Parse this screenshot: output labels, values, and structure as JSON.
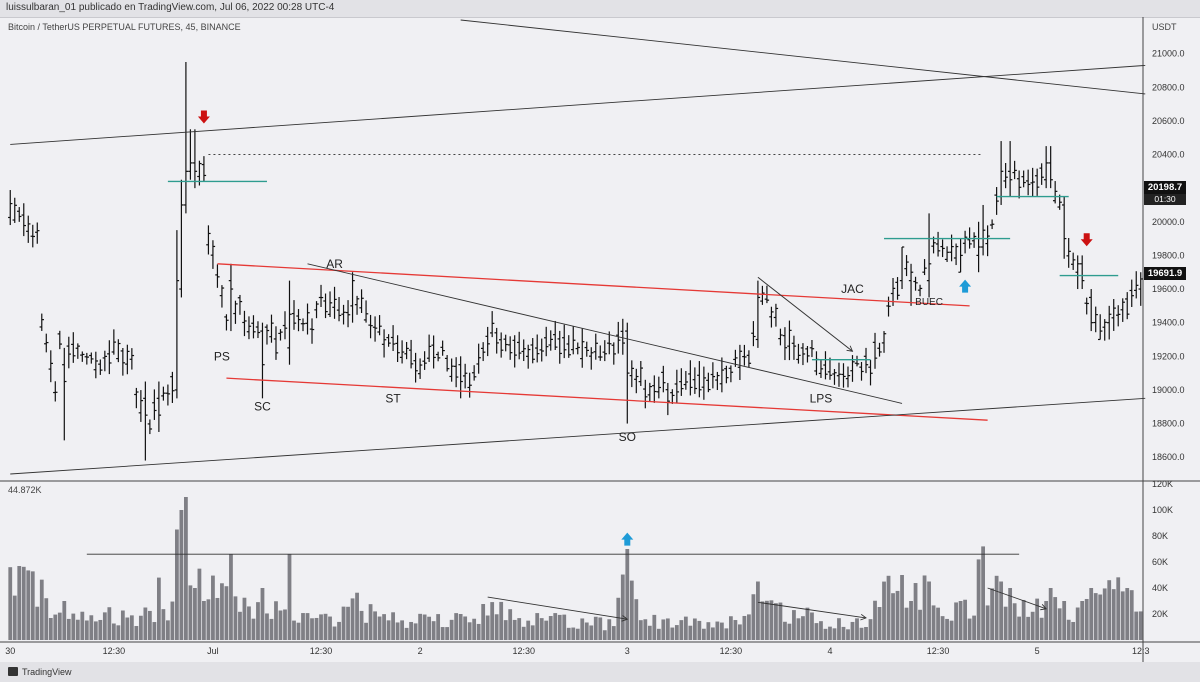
{
  "header": {
    "publisher": "luissulbaran_01 publicado en TradingView.com, Jul 06, 2022 00:28 UTC-4",
    "symbol": "Bitcoin / TetherUS PERPETUAL FUTURES, 45, BINANCE",
    "currency": "USDT",
    "volume_label": "44.872K"
  },
  "footer": {
    "logo_text": "TradingView"
  },
  "badges": {
    "current_price": "20198.7",
    "countdown": "01:30",
    "last_price": "19691.9"
  },
  "colors": {
    "bar": "#111111",
    "volume": "#7f7f85",
    "resistance": "#e53935",
    "level": "#2e9c8f",
    "arrow_down": "#cc1111",
    "arrow_up": "#1e9bd7"
  },
  "chart_data": {
    "type": "bar",
    "ylim": [
      18500,
      21200
    ],
    "volume_ylim": [
      0,
      120000
    ],
    "price_ticks": [
      21000,
      20800,
      20600,
      20400,
      20200,
      20000,
      19800,
      19600,
      19400,
      19200,
      19000,
      18800,
      18600
    ],
    "price_tick_labels": [
      "21000.0",
      "20800.0",
      "20600.0",
      "20400.0",
      "20200.0",
      "20000.0",
      "19800.0",
      "19600.0",
      "19400.0",
      "19200.0",
      "19000.0",
      "18800.0",
      "18600.0"
    ],
    "volume_ticks": [
      120000,
      100000,
      80000,
      60000,
      40000,
      20000
    ],
    "volume_tick_labels": [
      "120K",
      "100K",
      "80K",
      "60K",
      "40K",
      "20K"
    ],
    "x_ticks": [
      {
        "i": 0,
        "label": "30"
      },
      {
        "i": 23,
        "label": "12:30"
      },
      {
        "i": 45,
        "label": "Jul"
      },
      {
        "i": 69,
        "label": "12:30"
      },
      {
        "i": 91,
        "label": "2"
      },
      {
        "i": 114,
        "label": "12:30"
      },
      {
        "i": 137,
        "label": "3"
      },
      {
        "i": 160,
        "label": "12:30"
      },
      {
        "i": 182,
        "label": "4"
      },
      {
        "i": 206,
        "label": "12:30"
      },
      {
        "i": 228,
        "label": "5"
      },
      {
        "i": 251,
        "label": "12:3"
      }
    ],
    "anchors": [
      [
        0,
        20100,
        20080,
        50000
      ],
      [
        6,
        19900,
        19500,
        40000
      ],
      [
        10,
        19000,
        19300,
        20000
      ],
      [
        18,
        19200,
        19100,
        18000
      ],
      [
        22,
        19200,
        19300,
        20000
      ],
      [
        27,
        19150,
        19000,
        15000
      ],
      [
        31,
        18800,
        18900,
        22000
      ],
      [
        36,
        19050,
        19150,
        25000
      ],
      [
        38,
        19700,
        20200,
        100000
      ],
      [
        40,
        20300,
        20350,
        42000
      ],
      [
        43,
        20300,
        20000,
        42000
      ],
      [
        47,
        19600,
        19400,
        38000
      ],
      [
        51,
        19500,
        19400,
        32000
      ],
      [
        58,
        19350,
        19200,
        24000
      ],
      [
        62,
        19400,
        19450,
        20000
      ],
      [
        67,
        19400,
        19500,
        18000
      ],
      [
        72,
        19500,
        19450,
        18000
      ],
      [
        76,
        19500,
        19600,
        30000
      ],
      [
        80,
        19400,
        19350,
        22000
      ],
      [
        85,
        19300,
        19250,
        18000
      ],
      [
        91,
        19150,
        19200,
        15000
      ],
      [
        96,
        19250,
        19150,
        15000
      ],
      [
        101,
        19100,
        19000,
        16000
      ],
      [
        107,
        19350,
        19300,
        25000
      ],
      [
        113,
        19250,
        19200,
        18000
      ],
      [
        118,
        19250,
        19300,
        16000
      ],
      [
        124,
        19250,
        19300,
        15000
      ],
      [
        129,
        19200,
        19250,
        14000
      ],
      [
        134,
        19250,
        19300,
        12000
      ],
      [
        137,
        19300,
        19100,
        70000
      ],
      [
        140,
        19100,
        19000,
        15000
      ],
      [
        145,
        19050,
        18980,
        14000
      ],
      [
        150,
        19000,
        19050,
        15000
      ],
      [
        156,
        19050,
        19050,
        12000
      ],
      [
        160,
        19100,
        19150,
        15000
      ],
      [
        164,
        19200,
        19300,
        18000
      ],
      [
        166,
        19350,
        19550,
        45000
      ],
      [
        170,
        19450,
        19300,
        25000
      ],
      [
        174,
        19300,
        19200,
        20000
      ],
      [
        178,
        19200,
        19150,
        18000
      ],
      [
        181,
        19100,
        19050,
        15000
      ],
      [
        186,
        19100,
        19150,
        14000
      ],
      [
        191,
        19150,
        19200,
        18000
      ],
      [
        194,
        19300,
        19500,
        35000
      ],
      [
        198,
        19650,
        19800,
        45000
      ],
      [
        201,
        19650,
        19550,
        35000
      ],
      [
        203,
        19700,
        19850,
        40000
      ],
      [
        206,
        19850,
        19800,
        28000
      ],
      [
        210,
        19800,
        19850,
        22000
      ],
      [
        214,
        19900,
        19800,
        28000
      ],
      [
        218,
        19950,
        20100,
        38000
      ],
      [
        221,
        20250,
        20350,
        36000
      ],
      [
        224,
        20250,
        20300,
        25000
      ],
      [
        228,
        20250,
        20300,
        25000
      ],
      [
        231,
        20350,
        20200,
        38000
      ],
      [
        234,
        20100,
        19800,
        28000
      ],
      [
        237,
        19800,
        19650,
        22000
      ],
      [
        240,
        19500,
        19400,
        38000
      ],
      [
        244,
        19400,
        19450,
        40000
      ],
      [
        248,
        19500,
        19600,
        35000
      ],
      [
        251,
        19620,
        19660,
        22000
      ]
    ],
    "specials": {
      "38": [
        19600,
        20100,
        19550,
        20250,
        100000
      ],
      "39": [
        20100,
        20300,
        20050,
        20950,
        110000
      ],
      "40": [
        20300,
        20350,
        20250,
        20550,
        42000
      ],
      "41": [
        20350,
        20300,
        20200,
        20550,
        40000
      ],
      "37": [
        19000,
        19650,
        18950,
        19950,
        85000
      ],
      "33": [
        18950,
        18850,
        18750,
        19050,
        48000
      ],
      "30": [
        18950,
        18850,
        18580,
        19050,
        25000
      ],
      "12": [
        19150,
        19050,
        18700,
        19250,
        30000
      ],
      "49": [
        19650,
        19600,
        19350,
        19750,
        66000
      ],
      "56": [
        19350,
        19150,
        18950,
        19400,
        40000
      ],
      "62": [
        19250,
        19450,
        19150,
        19650,
        66000
      ],
      "76": [
        19500,
        19650,
        19400,
        19700,
        32000
      ],
      "100": [
        19150,
        19050,
        18950,
        19200,
        20000
      ],
      "137": [
        19350,
        19100,
        18800,
        19400,
        70000
      ],
      "166": [
        19300,
        19550,
        19250,
        19650,
        45000
      ],
      "190": [
        19200,
        19150,
        19100,
        19250,
        10000
      ],
      "198": [
        19650,
        19850,
        19600,
        19850,
        50000
      ],
      "200": [
        19650,
        19700,
        19500,
        19750,
        30000
      ],
      "204": [
        19650,
        19750,
        19550,
        20050,
        45000
      ],
      "211": [
        19700,
        19800,
        19700,
        19900,
        30000
      ],
      "215": [
        19800,
        19850,
        19700,
        20000,
        62000
      ],
      "216": [
        19850,
        19950,
        19800,
        20100,
        72000
      ],
      "220": [
        20150,
        20300,
        20100,
        20480,
        45000
      ],
      "222": [
        20300,
        20250,
        20150,
        20480,
        40000
      ],
      "230": [
        20250,
        20350,
        20200,
        20450,
        30000
      ],
      "231": [
        20350,
        20250,
        20200,
        20450,
        40000
      ],
      "234": [
        20100,
        19900,
        19780,
        20150,
        30000
      ],
      "237": [
        19700,
        19750,
        19600,
        19800,
        25000
      ],
      "238": [
        19750,
        19650,
        19600,
        19800,
        30000
      ],
      "240": [
        19550,
        19400,
        19350,
        19600,
        40000
      ],
      "242": [
        19300,
        19350,
        19300,
        19450,
        35000
      ],
      "244": [
        19400,
        19450,
        19300,
        19500,
        46000
      ],
      "251": [
        19600,
        19660,
        19500,
        19700,
        22000
      ]
    },
    "annotations": [
      {
        "text": "AR",
        "i": 72,
        "price": 19750
      },
      {
        "text": "PS",
        "i": 47,
        "price": 19200
      },
      {
        "text": "SC",
        "i": 56,
        "price": 18900
      },
      {
        "text": "ST",
        "i": 85,
        "price": 18950
      },
      {
        "text": "SO",
        "i": 137,
        "price": 18720
      },
      {
        "text": "LPS",
        "i": 180,
        "price": 18950
      },
      {
        "text": "JAC",
        "i": 187,
        "price": 19600
      },
      {
        "text": "BUEC",
        "i": 204,
        "price": 19530
      }
    ],
    "lines": [
      {
        "role": "resistance",
        "from": [
          46,
          19750
        ],
        "to": [
          213,
          19500
        ]
      },
      {
        "role": "resistance",
        "from": [
          48,
          19070
        ],
        "to": [
          217,
          18820
        ]
      },
      {
        "role": "trend",
        "from": [
          66,
          19750
        ],
        "to": [
          198,
          18920
        ]
      },
      {
        "role": "trend",
        "from": [
          0,
          20460
        ],
        "to": [
          252,
          20930
        ]
      },
      {
        "role": "trend",
        "from": [
          0,
          18500
        ],
        "to": [
          252,
          18950
        ]
      },
      {
        "role": "trend",
        "from": [
          100,
          21200
        ],
        "to": [
          252,
          20760
        ]
      },
      {
        "role": "arrow",
        "from": [
          166,
          19670
        ],
        "to": [
          187,
          19230
        ]
      },
      {
        "role": "level",
        "from": [
          35,
          20240
        ],
        "to": [
          57,
          20240
        ]
      },
      {
        "role": "level",
        "from": [
          194,
          19900
        ],
        "to": [
          222,
          19900
        ]
      },
      {
        "role": "level",
        "from": [
          178,
          19180
        ],
        "to": [
          191,
          19180
        ]
      },
      {
        "role": "level",
        "from": [
          219,
          20150
        ],
        "to": [
          235,
          20150
        ]
      },
      {
        "role": "level",
        "from": [
          233,
          19680
        ],
        "to": [
          246,
          19680
        ]
      },
      {
        "role": "dotted",
        "from": [
          44,
          20400
        ],
        "to": [
          216,
          20400
        ]
      }
    ],
    "volume_lines": [
      {
        "role": "flat",
        "from": [
          17,
          66000
        ],
        "to": [
          224,
          66000
        ]
      },
      {
        "role": "arrow",
        "from": [
          106,
          33000
        ],
        "to": [
          137,
          16000
        ]
      },
      {
        "role": "arrow",
        "from": [
          166,
          29000
        ],
        "to": [
          190,
          17000
        ]
      },
      {
        "role": "arrow",
        "from": [
          217,
          40000
        ],
        "to": [
          230,
          24000
        ]
      }
    ],
    "markers": [
      {
        "kind": "arrow_down",
        "pane": "price",
        "i": 43,
        "price": 20620
      },
      {
        "kind": "arrow_down",
        "pane": "price",
        "i": 239,
        "price": 19890
      },
      {
        "kind": "arrow_up",
        "pane": "price",
        "i": 212,
        "price": 19620
      },
      {
        "kind": "arrow_up",
        "pane": "volume",
        "i": 137,
        "volume": 78000
      }
    ]
  }
}
